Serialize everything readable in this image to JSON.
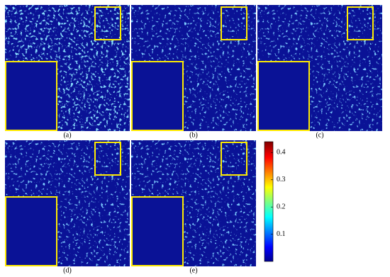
{
  "panels": [
    {
      "label": "(a)"
    },
    {
      "label": "(b)"
    },
    {
      "label": "(c)"
    },
    {
      "label": "(d)"
    },
    {
      "label": "(e)"
    }
  ],
  "colorbar": {
    "lim": [
      0,
      0.44
    ],
    "ticks": [
      0.1,
      0.2,
      0.3,
      0.4
    ]
  }
}
